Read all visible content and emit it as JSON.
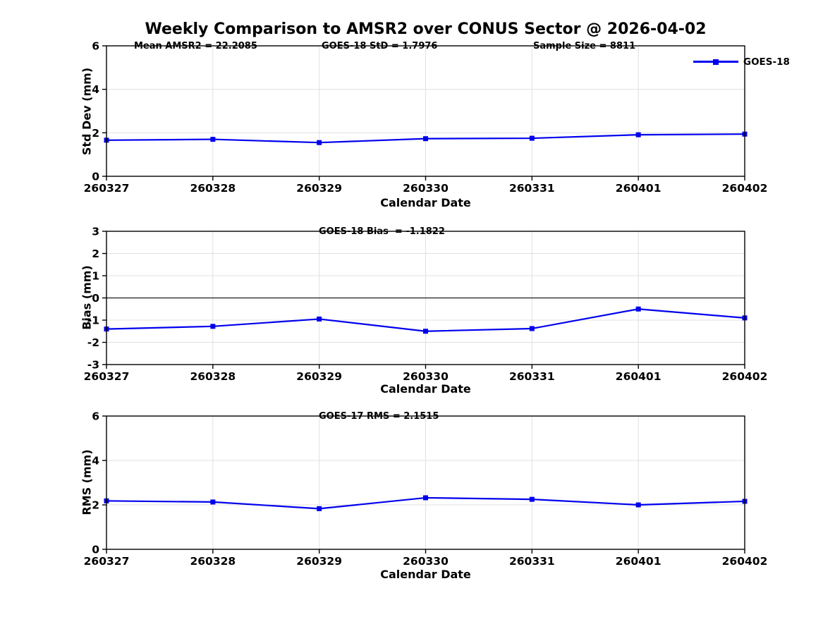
{
  "title": "Weekly Comparison to AMSR2 over CONUS Sector @ 2026-04-02",
  "legend": {
    "label": "GOES-18"
  },
  "colors": {
    "line": "#0000EE",
    "grid": "#E0E0E0",
    "axis": "#000000",
    "zero_line": "#3A3A3A",
    "text": "#000000",
    "background": "#FFFFFF"
  },
  "chart_data": [
    {
      "id": "stddev",
      "type": "line",
      "annotations": [
        "Mean AMSR2 = 22.2085",
        "GOES-18 StD = 1.7976",
        "Sample Size = 8811"
      ],
      "categories": [
        "260327",
        "260328",
        "260329",
        "260330",
        "260331",
        "260401",
        "260402"
      ],
      "series": [
        {
          "name": "GOES-18",
          "values": [
            1.66,
            1.7,
            1.55,
            1.73,
            1.75,
            1.91,
            1.94
          ]
        }
      ],
      "xlabel": "Calendar Date",
      "ylabel": "Std Dev (mm)",
      "ylim": [
        0,
        6
      ],
      "yticks": [
        0,
        2,
        4,
        6
      ],
      "grid": true,
      "zero_line": false,
      "legend_position": "outside-top-right"
    },
    {
      "id": "bias",
      "type": "line",
      "annotations": [
        "GOES-18 Bias  = -1.1822"
      ],
      "categories": [
        "260327",
        "260328",
        "260329",
        "260330",
        "260331",
        "260401",
        "260402"
      ],
      "series": [
        {
          "name": "GOES-18",
          "values": [
            -1.4,
            -1.28,
            -0.95,
            -1.5,
            -1.38,
            -0.5,
            -0.9
          ]
        }
      ],
      "xlabel": "Calendar Date",
      "ylabel": "Bias (mm)",
      "ylim": [
        -3,
        3
      ],
      "yticks": [
        -3,
        -2,
        -1,
        0,
        1,
        2,
        3
      ],
      "grid": true,
      "zero_line": true
    },
    {
      "id": "rms",
      "type": "line",
      "annotations": [
        "GOES-17 RMS = 2.1515"
      ],
      "categories": [
        "260327",
        "260328",
        "260329",
        "260330",
        "260331",
        "260401",
        "260402"
      ],
      "series": [
        {
          "name": "GOES-18",
          "values": [
            2.18,
            2.13,
            1.83,
            2.32,
            2.25,
            2.0,
            2.16
          ]
        }
      ],
      "xlabel": "Calendar Date",
      "ylabel": "RMS (mm)",
      "ylim": [
        0,
        6
      ],
      "yticks": [
        0,
        2,
        4,
        6
      ],
      "grid": true,
      "zero_line": false
    }
  ]
}
